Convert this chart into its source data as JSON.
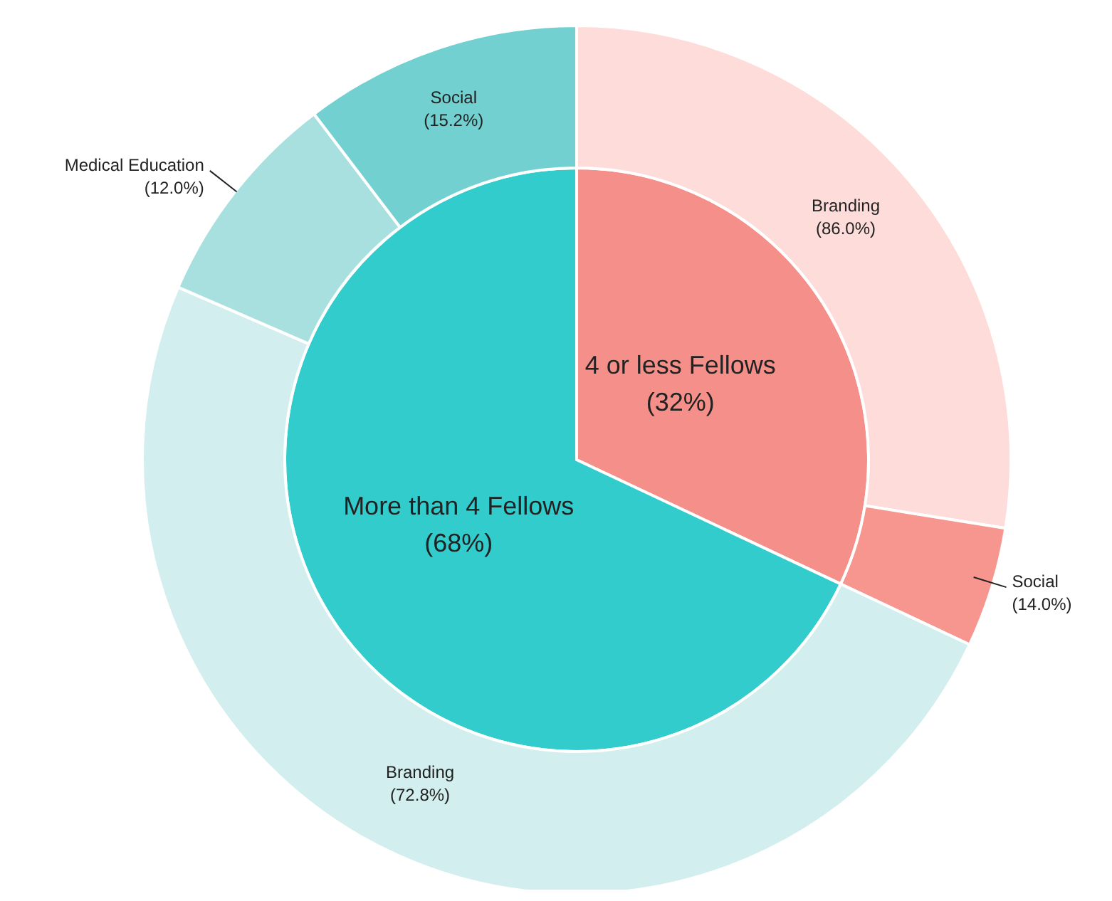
{
  "chart_data": [
    {
      "type": "pie",
      "categories": [
        "4 or less Fellows",
        "More than 4 Fellows"
      ],
      "values": [
        32,
        68
      ],
      "value_labels": [
        "(32%)",
        "(68%)"
      ],
      "colors": [
        "#f58f8a",
        "#33cccc"
      ]
    },
    {
      "type": "donut",
      "categories": [
        "Branding",
        "Social"
      ],
      "values": [
        86.0,
        14.0
      ],
      "value_labels": [
        "(86.0%)",
        "(14.0%)"
      ],
      "colors": [
        "#fddcd9",
        "#f7958f"
      ]
    },
    {
      "type": "donut",
      "categories": [
        "Branding",
        "Medical Education",
        "Social"
      ],
      "values": [
        72.8,
        12.0,
        15.2
      ],
      "value_labels": [
        "(72.8%)",
        "(12.0%)",
        "(15.2%)"
      ],
      "colors": [
        "#d3eeee",
        "#a8e0e0",
        "#72d0d0"
      ]
    }
  ]
}
